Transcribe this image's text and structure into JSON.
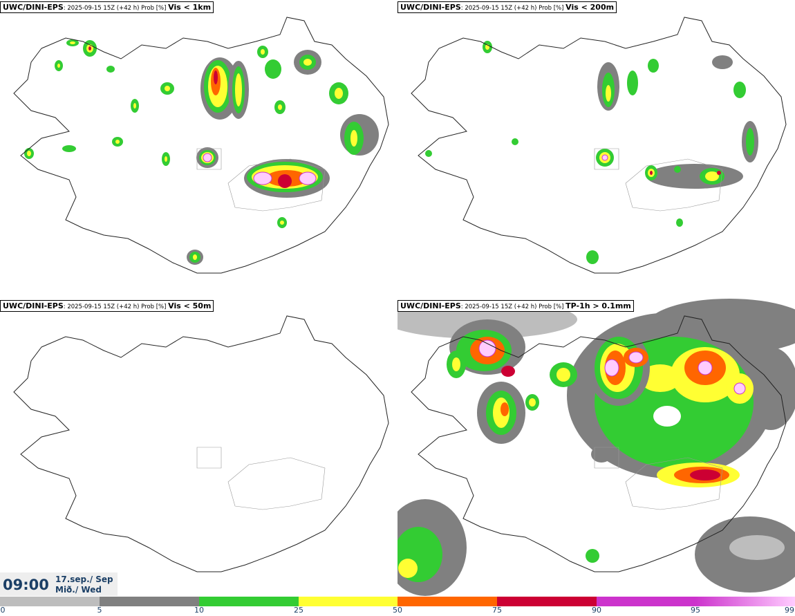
{
  "panels": [
    {
      "model": "UWC/DINI-EPS",
      "meta": ": 2025-09-15 15Z (+42 h) Prob [%] ",
      "variable": "Vis < 1km"
    },
    {
      "model": "UWC/DINI-EPS",
      "meta": ": 2025-09-15 15Z (+42 h) Prob [%] ",
      "variable": "Vis < 200m"
    },
    {
      "model": "UWC/DINI-EPS",
      "meta": ": 2025-09-15 15Z (+42 h) Prob [%] ",
      "variable": "Vis < 50m"
    },
    {
      "model": "UWC/DINI-EPS",
      "meta": ": 2025-09-15 15Z (+42 h) Prob [%] ",
      "variable": "TP-1h > 0.1mm"
    }
  ],
  "time": "09:00",
  "date_line1": "17.sep./ Sep",
  "date_line2": "Mið./ Wed",
  "colorbar": {
    "ticks": [
      "0",
      "5",
      "10",
      "25",
      "50",
      "75",
      "90",
      "95",
      "99"
    ],
    "colors": [
      "#ffffff",
      "#bdbdbd",
      "#808080",
      "#33cc33",
      "#ffff33",
      "#ff6600",
      "#cc0033",
      "#cc33cc",
      "#ffccff"
    ]
  }
}
